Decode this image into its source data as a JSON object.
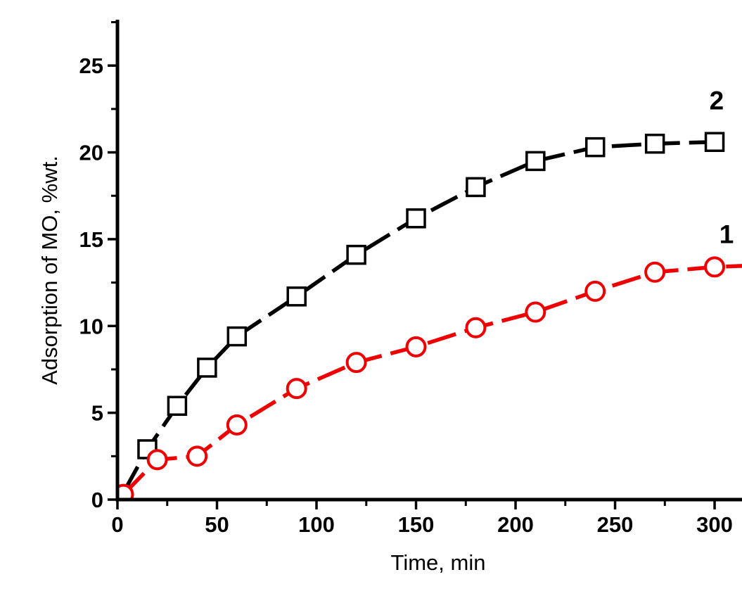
{
  "page": {
    "background": "#ffffff",
    "title": ""
  },
  "chart_data": {
    "type": "line",
    "title": "",
    "xlabel": "Time, min",
    "ylabel": "Adsorption of MO, %wt.",
    "xlim": [
      0,
      325
    ],
    "ylim": [
      0,
      27.5
    ],
    "grid": false,
    "frame": false,
    "tick_direction": "out",
    "x_major_ticks": [
      0,
      50,
      100,
      150,
      200,
      250,
      300
    ],
    "x_minor_ticks": [
      25,
      75,
      125,
      175,
      225,
      275,
      325
    ],
    "y_major_ticks": [
      0,
      5,
      10,
      15,
      20,
      25
    ],
    "y_minor_ticks": [
      2.5,
      7.5,
      12.5,
      17.5,
      22.5,
      27.5
    ],
    "x_tick_labels": [
      "0",
      "50",
      "100",
      "150",
      "200",
      "250",
      "300"
    ],
    "y_tick_labels": [
      "0",
      "5",
      "10",
      "15",
      "20",
      "25"
    ],
    "line_style": "dashed",
    "series": [
      {
        "name": "2",
        "label": "2",
        "color": "#000000",
        "marker": "square",
        "marker_fill": "#ffffff",
        "x": [
          3,
          15,
          30,
          45,
          60,
          90,
          120,
          150,
          180,
          210,
          240,
          270,
          300
        ],
        "y": [
          0.4,
          2.9,
          5.4,
          7.6,
          9.4,
          11.7,
          14.1,
          16.2,
          18.0,
          19.5,
          20.3,
          20.5,
          20.6
        ],
        "no_marker_indices": [
          0
        ]
      },
      {
        "name": "1",
        "label": "1",
        "color": "#ee0000",
        "marker": "circle",
        "marker_fill": "#ffffff",
        "x": [
          3,
          20,
          40,
          60,
          90,
          120,
          150,
          180,
          210,
          240,
          270,
          300,
          323
        ],
        "y": [
          0.3,
          2.3,
          2.5,
          4.3,
          6.4,
          7.9,
          8.8,
          9.9,
          10.8,
          12.0,
          13.1,
          13.4,
          13.5
        ],
        "no_marker_indices": [
          12
        ]
      }
    ],
    "annotations": [
      {
        "text": "2",
        "x": 301,
        "y": 23.0,
        "color": "#000000"
      },
      {
        "text": "1",
        "x": 306,
        "y": 15.3,
        "color": "#000000"
      }
    ],
    "legend_position": "inline-annotations"
  }
}
